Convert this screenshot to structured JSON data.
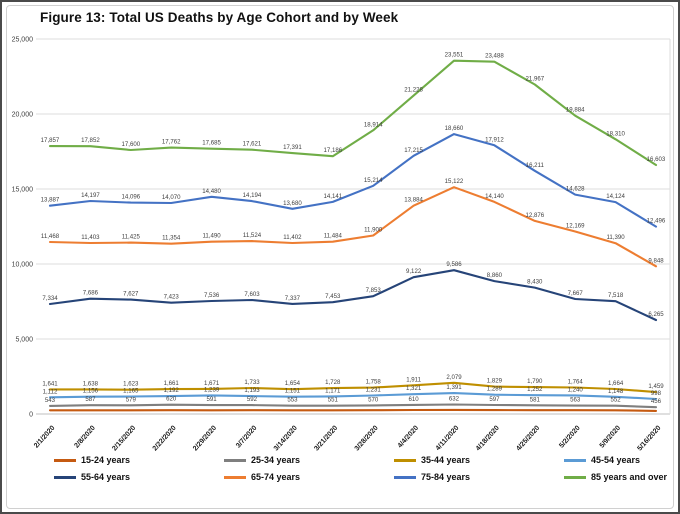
{
  "figure": {
    "title": "Figure 13: Total US Deaths by Age Cohort and by Week"
  },
  "chart_data": {
    "type": "line",
    "title": "Figure 13: Total US Deaths by Age Cohort and by Week",
    "xlabel": "",
    "ylabel": "",
    "grid": true,
    "legend_position": "bottom",
    "y_axis": {
      "min": 0,
      "max": 25000,
      "tick_interval": 5000,
      "tick_labels": [
        "0",
        "5,000",
        "10,000",
        "15,000",
        "20,000",
        "25,000"
      ]
    },
    "x": [
      "2/1/2020",
      "2/8/2020",
      "2/15/2020",
      "2/22/2020",
      "2/29/2020",
      "3/7/2020",
      "3/14/2020",
      "3/21/2020",
      "3/28/2020",
      "4/4/2020",
      "4/11/2020",
      "4/18/2020",
      "4/25/2020",
      "5/2/2020",
      "5/9/2020",
      "5/16/2020"
    ],
    "series": [
      {
        "name": "15-24 years",
        "color": "#c55a11",
        "show_labels": false,
        "values": [
          245,
          250,
          248,
          252,
          249,
          251,
          247,
          250,
          254,
          266,
          273,
          262,
          256,
          251,
          244,
          205
        ]
      },
      {
        "name": "25-34 years",
        "color": "#7f7f7f",
        "show_labels": true,
        "values": [
          543,
          587,
          579,
          620,
          591,
          592,
          553,
          551,
          570,
          610,
          632,
          597,
          581,
          563,
          552,
          456
        ]
      },
      {
        "name": "35-44 years",
        "color": "#bf8f00",
        "show_labels": true,
        "values": [
          1641,
          1638,
          1623,
          1661,
          1671,
          1733,
          1654,
          1728,
          1758,
          1911,
          2079,
          1829,
          1790,
          1764,
          1664,
          1459
        ]
      },
      {
        "name": "45-54 years",
        "color": "#5b9bd5",
        "show_labels": true,
        "values": [
          1112,
          1156,
          1165,
          1192,
          1239,
          1193,
          1151,
          1171,
          1231,
          1321,
          1391,
          1289,
          1252,
          1240,
          1148,
          998
        ]
      },
      {
        "name": "55-64 years",
        "color": "#264478",
        "show_labels": true,
        "values": [
          7334,
          7686,
          7627,
          7423,
          7536,
          7603,
          7337,
          7453,
          7853,
          9122,
          9586,
          8860,
          8430,
          7667,
          7518,
          6265
        ]
      },
      {
        "name": "65-74 years",
        "color": "#ed7d31",
        "show_labels": true,
        "values": [
          11468,
          11403,
          11425,
          11354,
          11490,
          11524,
          11402,
          11484,
          11900,
          13884,
          15122,
          14140,
          12876,
          12169,
          11390,
          9848
        ]
      },
      {
        "name": "75-84 years",
        "color": "#4472c4",
        "show_labels": true,
        "values": [
          13887,
          14197,
          14096,
          14070,
          14480,
          14194,
          13680,
          14141,
          15214,
          17215,
          18660,
          17912,
          16211,
          14628,
          14124,
          12496
        ]
      },
      {
        "name": "85 years and over",
        "color": "#70ad47",
        "show_labels": true,
        "values": [
          17857,
          17852,
          17600,
          17762,
          17685,
          17621,
          17391,
          17186,
          18914,
          21228,
          23551,
          23488,
          21967,
          19884,
          18310,
          16603
        ]
      }
    ]
  }
}
